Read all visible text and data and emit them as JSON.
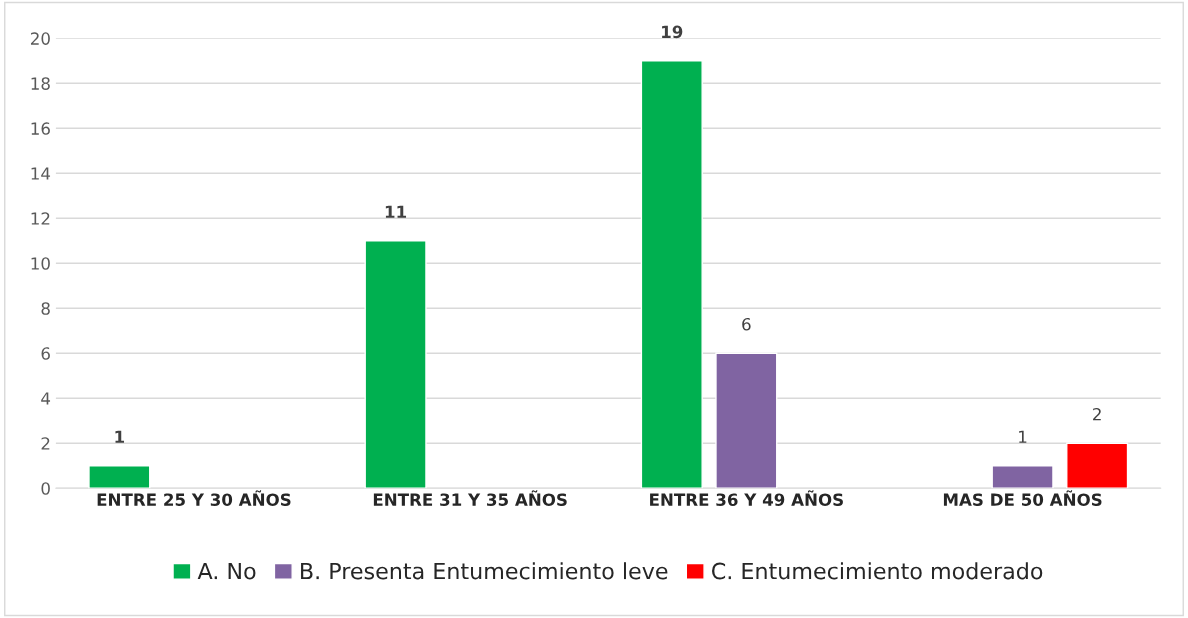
{
  "chart_data": {
    "type": "bar",
    "categories": [
      "ENTRE 25 Y 30 AÑOS",
      "ENTRE 31 Y 35 AÑOS",
      "ENTRE 36 Y 49 AÑOS",
      "MAS DE 50 AÑOS"
    ],
    "series": [
      {
        "name": "A. No",
        "color": "#00b050",
        "values": [
          1,
          11,
          19,
          null
        ]
      },
      {
        "name": "B. Presenta Entumecimiento leve",
        "color": "#8064a2",
        "values": [
          null,
          null,
          6,
          1
        ]
      },
      {
        "name": "C. Entumecimiento moderado",
        "color": "#ff0000",
        "values": [
          null,
          null,
          null,
          2
        ]
      }
    ],
    "ylim": [
      0,
      20
    ],
    "yticks": [
      0,
      2,
      4,
      6,
      8,
      10,
      12,
      14,
      16,
      18,
      20
    ],
    "grid": "y",
    "legend": "bottom",
    "data_labels": true
  }
}
